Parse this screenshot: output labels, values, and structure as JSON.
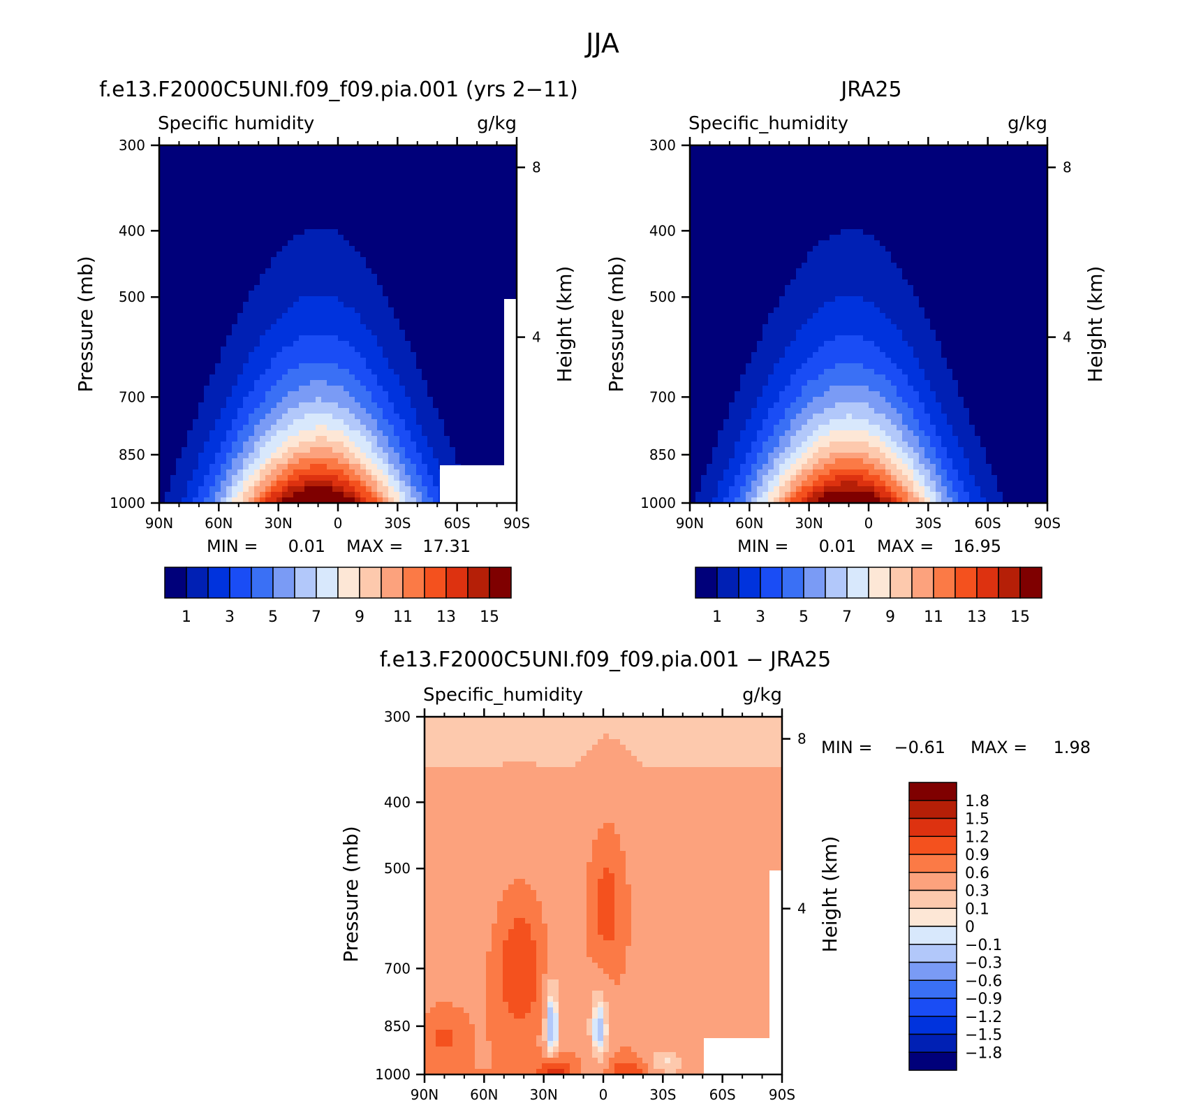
{
  "figure": {
    "title": "JJA"
  },
  "chart_data": [
    {
      "type": "heatmap",
      "title": "f.e13.F2000C5UNI.f09_f09.pia.001 (yrs 2−11)",
      "subtitle_left": "Specific humidity",
      "subtitle_right": "g/kg",
      "ylabel": "Pressure (mb)",
      "ylabel_right": "Height (km)",
      "x_ticks": [
        "90N",
        "60N",
        "30N",
        "0",
        "30S",
        "60S",
        "90S"
      ],
      "y_ticks": [
        "300",
        "400",
        "500",
        "700",
        "850",
        "1000"
      ],
      "y_ticks_right": [
        "8",
        "4"
      ],
      "ylim": [
        1000,
        300
      ],
      "xlim": [
        "90N",
        "90S"
      ],
      "stats": {
        "min_label": "MIN =",
        "min": "0.01",
        "max_label": "MAX =",
        "max": "17.31"
      },
      "colorbar_labels": [
        "1",
        "3",
        "5",
        "7",
        "9",
        "11",
        "13",
        "15"
      ],
      "field": {
        "peak": 17.31,
        "peak_lat": 8,
        "min": 0.01
      }
    },
    {
      "type": "heatmap",
      "title": "JRA25",
      "subtitle_left": "Specific_humidity",
      "subtitle_right": "g/kg",
      "ylabel": "Pressure (mb)",
      "ylabel_right": "Height (km)",
      "x_ticks": [
        "90N",
        "60N",
        "30N",
        "0",
        "30S",
        "60S",
        "90S"
      ],
      "y_ticks": [
        "300",
        "400",
        "500",
        "700",
        "850",
        "1000"
      ],
      "y_ticks_right": [
        "8",
        "4"
      ],
      "ylim": [
        1000,
        300
      ],
      "xlim": [
        "90N",
        "90S"
      ],
      "stats": {
        "min_label": "MIN =",
        "min": "0.01",
        "max_label": "MAX =",
        "max": "16.95"
      },
      "colorbar_labels": [
        "1",
        "3",
        "5",
        "7",
        "9",
        "11",
        "13",
        "15"
      ],
      "field": {
        "peak": 16.95,
        "peak_lat": 8,
        "min": 0.01
      }
    },
    {
      "type": "heatmap",
      "title": "f.e13.F2000C5UNI.f09_f09.pia.001 − JRA25",
      "subtitle_left": "Specific_humidity",
      "subtitle_right": "g/kg",
      "ylabel": "Pressure (mb)",
      "ylabel_right": "Height (km)",
      "x_ticks": [
        "90N",
        "60N",
        "30N",
        "0",
        "30S",
        "60S",
        "90S"
      ],
      "y_ticks": [
        "300",
        "400",
        "500",
        "700",
        "850",
        "1000"
      ],
      "y_ticks_right": [
        "8",
        "4"
      ],
      "ylim": [
        1000,
        300
      ],
      "xlim": [
        "90N",
        "90S"
      ],
      "stats": {
        "min_label": "MIN =",
        "min": "−0.61",
        "max_label": "MAX =",
        "max": "1.98"
      },
      "colorbar_labels": [
        "1.8",
        "1.5",
        "1.2",
        "0.9",
        "0.6",
        "0.3",
        "0.1",
        "0",
        "−0.1",
        "−0.3",
        "−0.6",
        "−0.9",
        "−1.2",
        "−1.5",
        "−1.8"
      ],
      "field": {
        "min": -0.61,
        "max": 1.98
      }
    }
  ],
  "colors": {
    "humidity_scale": [
      "#00007a",
      "#0020b4",
      "#0033dd",
      "#1a4df5",
      "#3a70f5",
      "#7a9bf5",
      "#b2c8fa",
      "#d8e8fc",
      "#fde7d6",
      "#fdc9ad",
      "#fca27d",
      "#fb7a46",
      "#f4511e",
      "#dd3210",
      "#b51f07",
      "#7f0000"
    ],
    "diff_scale": [
      "#00007a",
      "#0020b4",
      "#0033dd",
      "#1a4df5",
      "#3a70f5",
      "#7a9bf5",
      "#b2c8fa",
      "#d8e8fc",
      "#fde7d6",
      "#fdc9ad",
      "#fca27d",
      "#fb7a46",
      "#f4511e",
      "#dd3210",
      "#b51f07",
      "#7f0000"
    ]
  }
}
